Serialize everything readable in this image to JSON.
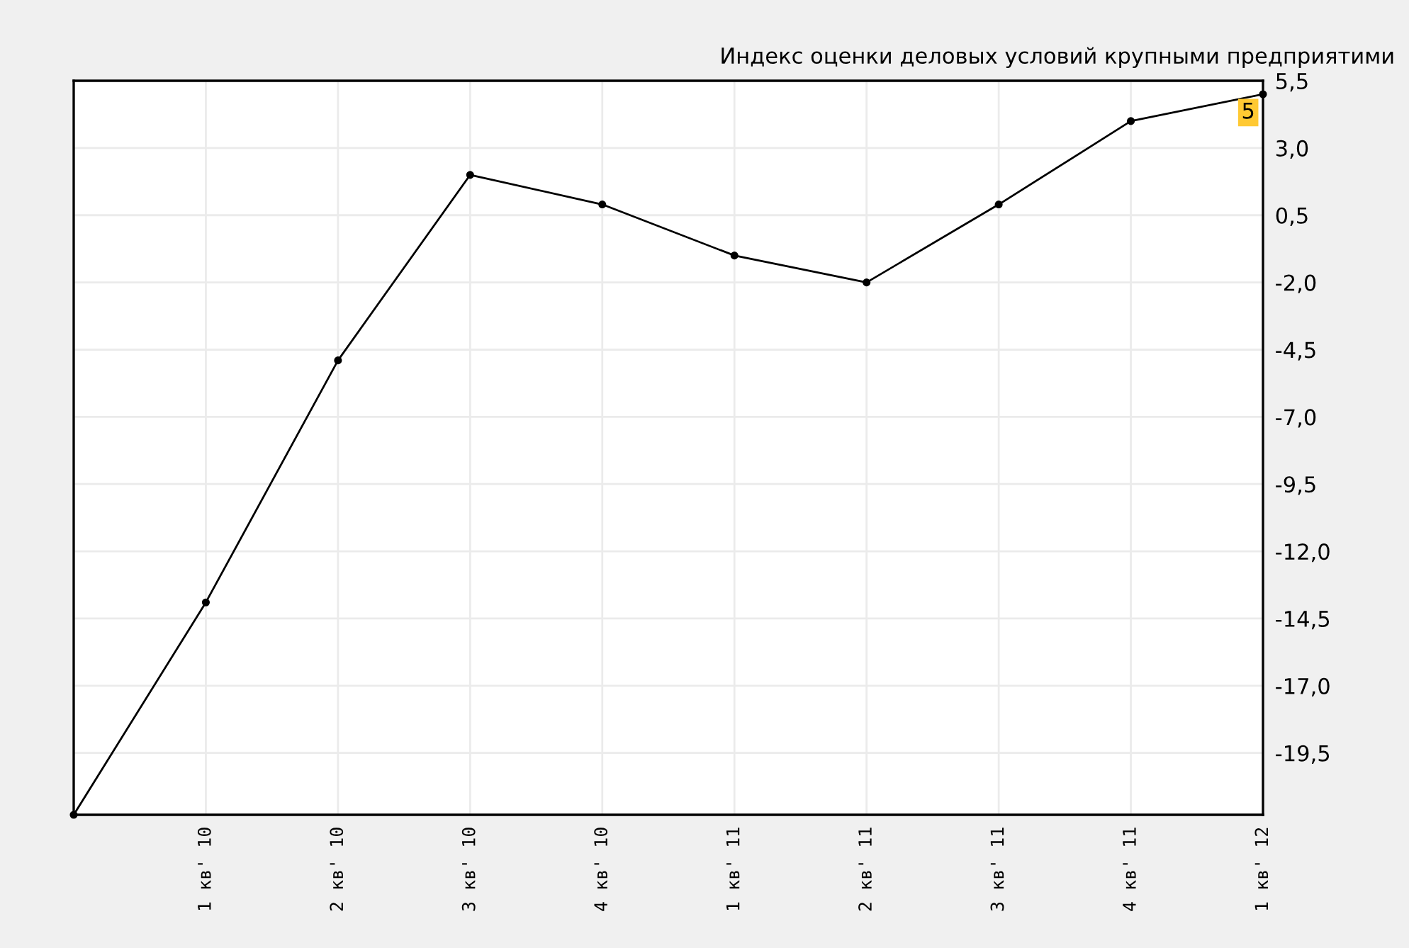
{
  "chart_data": {
    "type": "line",
    "title": "Индекс оценки деловых условий крупными предприятими",
    "categories": [
      null,
      "1 кв' 10",
      "2 кв' 10",
      "3 кв' 10",
      "4 кв' 10",
      "1 кв' 11",
      "2 кв' 11",
      "3 кв' 11",
      "4 кв' 11",
      "1 кв' 12"
    ],
    "series": [
      {
        "color": "#000000",
        "values": [
          -21.8,
          -13.9,
          -4.9,
          2.0,
          0.9,
          -1.0,
          -2.0,
          0.9,
          4.0,
          5
        ],
        "value_labels": [
          null,
          null,
          null,
          null,
          null,
          null,
          null,
          null,
          null,
          "5"
        ]
      }
    ],
    "ylim": [
      -21.8,
      5.5
    ],
    "yticks": [
      {
        "value": 5.5,
        "label": "5,5"
      },
      {
        "value": 3.0,
        "label": "3,0"
      },
      {
        "value": 0.5,
        "label": "0,5"
      },
      {
        "value": -2.0,
        "label": "-2,0"
      },
      {
        "value": -4.5,
        "label": "-4,5"
      },
      {
        "value": -7.0,
        "label": "-7,0"
      },
      {
        "value": -9.5,
        "label": "-9,5"
      },
      {
        "value": -12.0,
        "label": "-12,0"
      },
      {
        "value": -14.5,
        "label": "-14,5"
      },
      {
        "value": -17.0,
        "label": "-17,0"
      },
      {
        "value": -19.5,
        "label": "-19,5"
      }
    ],
    "grid": true,
    "marker": "circle",
    "line_style": "solid",
    "legend": false
  }
}
